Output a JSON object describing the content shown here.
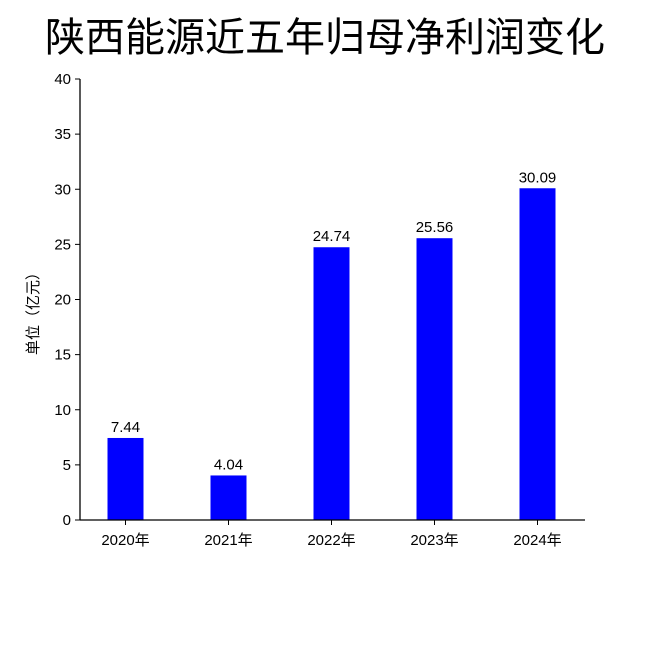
{
  "chart_data": {
    "type": "bar",
    "title": "陕西能源近五年归母净利润变化",
    "xlabel": "",
    "ylabel": "单位（亿元）",
    "categories": [
      "2020年",
      "2021年",
      "2022年",
      "2023年",
      "2024年"
    ],
    "values": [
      7.44,
      4.04,
      24.74,
      25.56,
      30.09
    ],
    "data_labels": [
      "7.44",
      "4.04",
      "24.74",
      "25.56",
      "30.09"
    ],
    "ylim": [
      0,
      40
    ],
    "yticks": [
      0,
      5,
      10,
      15,
      20,
      25,
      30,
      35,
      40
    ],
    "grid": false,
    "bar_color": "#0000ff"
  }
}
